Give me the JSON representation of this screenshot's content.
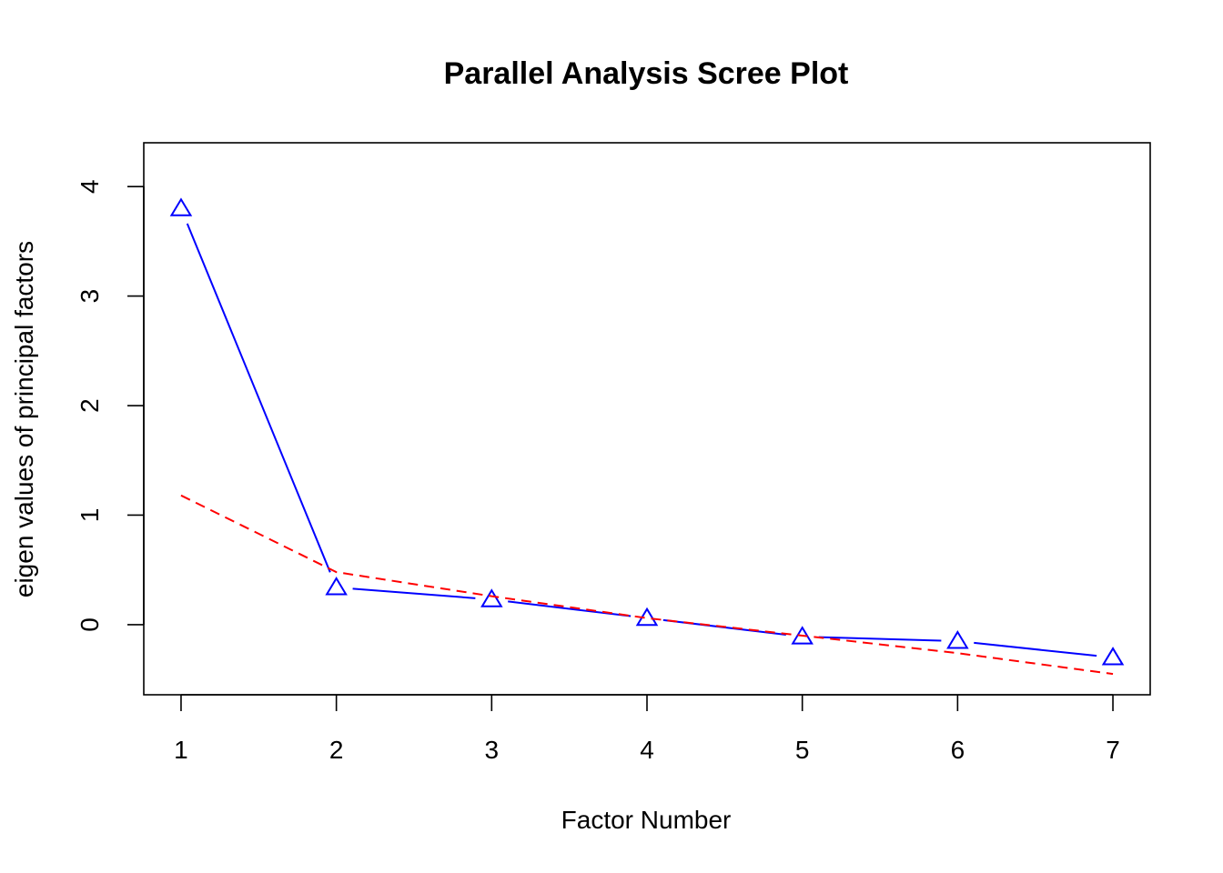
{
  "chart_data": {
    "type": "line",
    "title": "Parallel Analysis Scree Plot",
    "xlabel": "Factor Number",
    "ylabel": "eigen values of principal factors",
    "x": [
      1,
      2,
      3,
      4,
      5,
      6,
      7
    ],
    "xticks": [
      "1",
      "2",
      "3",
      "4",
      "5",
      "6",
      "7"
    ],
    "yticks": [
      "0",
      "1",
      "2",
      "3",
      "4"
    ],
    "xlim": [
      0.76,
      7.24
    ],
    "ylim": [
      -0.64,
      4.4
    ],
    "grid": false,
    "legend": "none",
    "series": [
      {
        "values": [
          3.8,
          0.34,
          0.23,
          0.06,
          -0.11,
          -0.15,
          -0.3
        ],
        "color": "#0000ff",
        "line_style": "solid",
        "marker": "triangle"
      },
      {
        "values": [
          1.18,
          0.48,
          0.26,
          0.06,
          -0.1,
          -0.26,
          -0.45
        ],
        "color": "#ff0000",
        "line_style": "dashed",
        "marker": "none"
      }
    ]
  }
}
